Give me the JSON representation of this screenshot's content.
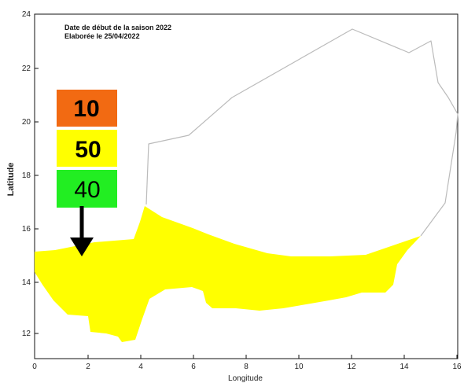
{
  "chart_data": {
    "type": "map",
    "annotation_lines": [
      "Date de début de la saison 2022",
      "Elaborée le 25/04/2022"
    ],
    "xlabel": "Longitude",
    "ylabel": "Latitude",
    "xlim": [
      0,
      16
    ],
    "ylim": [
      11.2,
      24
    ],
    "x_ticks": [
      "0",
      "2",
      "4",
      "6",
      "8",
      "10",
      "12",
      "14",
      "16"
    ],
    "y_ticks": [
      "12",
      "14",
      "16",
      "18",
      "20",
      "22",
      "24"
    ],
    "legend": [
      {
        "value": "10",
        "color": "#f26a12"
      },
      {
        "value": "50",
        "color": "#ffff00"
      },
      {
        "value": "40",
        "color": "#22ee22"
      }
    ],
    "fill_color": "#ffff00",
    "outline_color": "#bbbbbb",
    "arrow_color": "#000000"
  }
}
